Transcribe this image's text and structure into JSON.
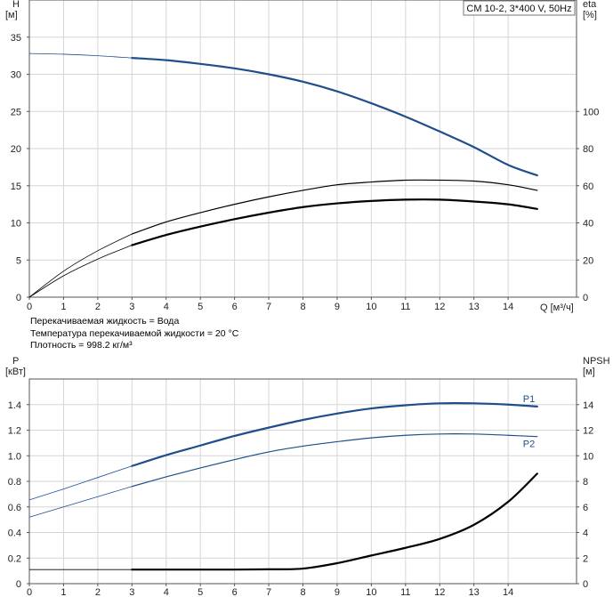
{
  "notes": {
    "fluid": "Перекачиваемая жидкость = Вода",
    "temperature": "Температура перекачиваемой жидкости = 20 °C",
    "density": "Плотность = 998.2 кг/м³"
  },
  "chart_data": [
    {
      "type": "line",
      "title": "CM 10-2, 3*400 V, 50Hz",
      "xlabel": "Q [м³/ч]",
      "ylabel_left": [
        "H",
        "[м]"
      ],
      "ylabel_right": [
        "eta",
        "[%]"
      ],
      "xlim": [
        0,
        16
      ],
      "ylim_left": [
        0,
        40
      ],
      "ylim_right": [
        0,
        160
      ],
      "x_ticks": [
        0,
        1,
        2,
        3,
        4,
        5,
        6,
        7,
        8,
        9,
        10,
        11,
        12,
        13,
        14
      ],
      "y_ticks_left": [
        0,
        5,
        10,
        15,
        20,
        25,
        30,
        35
      ],
      "y_ticks_right": [
        0,
        20,
        40,
        60,
        80,
        100
      ],
      "grid": true,
      "series": [
        {
          "axis": "left",
          "color": "#1f4e8c",
          "width": 2.2,
          "x": [
            0,
            1,
            2,
            3,
            4,
            5,
            6,
            7,
            8,
            9,
            10,
            11,
            12,
            13,
            14,
            14.85
          ],
          "y": [
            32.8,
            32.7,
            32.5,
            32.2,
            31.9,
            31.4,
            30.8,
            30.0,
            29.0,
            27.7,
            26.1,
            24.3,
            22.3,
            20.2,
            17.8,
            16.4
          ],
          "dashed_until": 3
        },
        {
          "axis": "right",
          "color": "#000000",
          "width": 1.2,
          "x": [
            0,
            1,
            2,
            3,
            4,
            5,
            6,
            7,
            8,
            9,
            10,
            11,
            12,
            13,
            14,
            14.85
          ],
          "y": [
            0,
            14,
            25,
            34,
            40.5,
            45.5,
            50,
            54,
            57.5,
            60.5,
            62,
            63,
            63,
            62.5,
            60.5,
            57.5
          ],
          "dashed_until": 3
        },
        {
          "axis": "right",
          "color": "#000000",
          "width": 2.2,
          "x": [
            0,
            1,
            2,
            3,
            4,
            5,
            6,
            7,
            8,
            9,
            10,
            11,
            12,
            13,
            14,
            14.85
          ],
          "y": [
            0,
            11.5,
            20.5,
            28,
            33.5,
            38,
            42,
            45.5,
            48.5,
            50.5,
            51.8,
            52.5,
            52.5,
            51.5,
            50,
            47.5
          ],
          "dashed_until": 3
        }
      ]
    },
    {
      "type": "line",
      "ylabel_left": [
        "P",
        "[кВт]"
      ],
      "ylabel_right": [
        "NPSH",
        "[м]"
      ],
      "xlim": [
        0,
        16
      ],
      "ylim_left": [
        0,
        1.6
      ],
      "ylim_right": [
        0,
        16
      ],
      "x_ticks": [
        0,
        1,
        2,
        3,
        4,
        5,
        6,
        7,
        8,
        9,
        10,
        11,
        12,
        13,
        14
      ],
      "y_ticks_left": [
        "0",
        "0.2",
        "0.4",
        "0.6",
        "0.8",
        "1.0",
        "1.2",
        "1.4"
      ],
      "y_ticks_right": [
        "0",
        "2",
        "4",
        "6",
        "8",
        "10",
        "12",
        "14"
      ],
      "grid": true,
      "series": [
        {
          "name": "P1",
          "axis": "left",
          "color": "#1f4e8c",
          "width": 2.2,
          "x": [
            0,
            1,
            2,
            3,
            4,
            5,
            6,
            7,
            8,
            9,
            10,
            11,
            12,
            13,
            14,
            14.85
          ],
          "y": [
            0.655,
            0.74,
            0.83,
            0.92,
            1.005,
            1.08,
            1.155,
            1.22,
            1.28,
            1.33,
            1.37,
            1.395,
            1.41,
            1.41,
            1.4,
            1.385
          ],
          "dashed_until": 3
        },
        {
          "name": "P2",
          "axis": "left",
          "color": "#1f4e8c",
          "width": 1.2,
          "x": [
            0,
            1,
            2,
            3,
            4,
            5,
            6,
            7,
            8,
            9,
            10,
            11,
            12,
            13,
            14,
            14.85
          ],
          "y": [
            0.52,
            0.6,
            0.68,
            0.76,
            0.835,
            0.905,
            0.97,
            1.03,
            1.075,
            1.11,
            1.14,
            1.16,
            1.17,
            1.17,
            1.16,
            1.15
          ],
          "dashed_until": 3
        },
        {
          "axis": "right",
          "color": "#000000",
          "width": 2.2,
          "x": [
            0,
            1,
            2,
            3,
            4,
            5,
            6,
            7,
            8,
            9,
            10,
            11,
            12,
            13,
            14,
            14.85
          ],
          "y": [
            1.1,
            1.1,
            1.1,
            1.1,
            1.1,
            1.1,
            1.1,
            1.12,
            1.18,
            1.6,
            2.2,
            2.8,
            3.5,
            4.6,
            6.4,
            8.6
          ],
          "dashed_until": 3
        }
      ]
    }
  ]
}
